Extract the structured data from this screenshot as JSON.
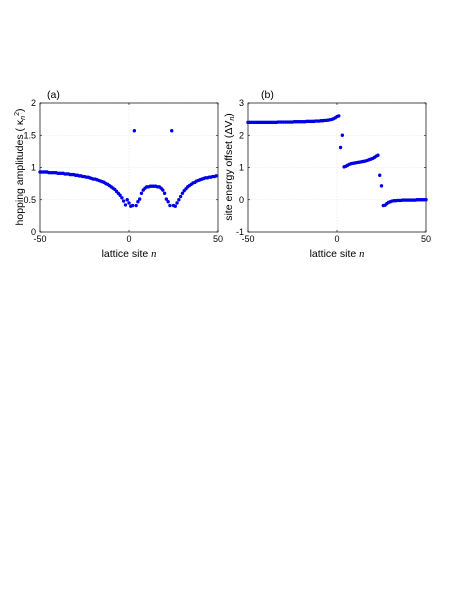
{
  "chart_data": [
    {
      "type": "scatter",
      "panel_label": "(a)",
      "xlabel_text": "lattice site ",
      "xlabel_var": "n",
      "ylabel_text": "hopping amplitudes ( κ",
      "ylabel_sub": "n",
      "ylabel_sup": "2",
      "ylabel_close": ")",
      "xlim": [
        -50,
        50
      ],
      "ylim": [
        0,
        2
      ],
      "xticks": [
        "-50",
        "0",
        "50"
      ],
      "yticks": [
        "0",
        "0.5",
        "1",
        "1.5",
        "2"
      ],
      "grid": true,
      "color": "#0000e6",
      "series": [
        {
          "x": [
            -50,
            -49,
            -48,
            -47,
            -46,
            -45,
            -44,
            -43,
            -42,
            -41,
            -40,
            -39,
            -38,
            -37,
            -36,
            -35,
            -34,
            -33,
            -32,
            -31,
            -30,
            -29,
            -28,
            -27,
            -26,
            -25,
            -24,
            -23,
            -22,
            -21,
            -20,
            -19,
            -18,
            -17,
            -16,
            -15,
            -14,
            -13,
            -12,
            -11,
            -10,
            -9,
            -8,
            -7,
            -6,
            -5,
            -4,
            -3,
            -2,
            -1,
            0,
            1,
            2,
            3,
            4,
            5,
            6,
            7,
            8,
            9,
            10,
            11,
            12,
            13,
            14,
            15,
            16,
            17,
            18,
            19,
            20,
            21,
            22,
            23,
            24,
            25,
            26,
            27,
            28,
            29,
            30,
            31,
            32,
            33,
            34,
            35,
            36,
            37,
            38,
            39,
            40,
            41,
            42,
            43,
            44,
            45,
            46,
            47,
            48,
            49
          ],
          "y": [
            0.93,
            0.93,
            0.93,
            0.93,
            0.93,
            0.92,
            0.92,
            0.92,
            0.92,
            0.92,
            0.91,
            0.91,
            0.91,
            0.91,
            0.9,
            0.9,
            0.9,
            0.89,
            0.89,
            0.89,
            0.88,
            0.88,
            0.87,
            0.87,
            0.86,
            0.86,
            0.85,
            0.85,
            0.84,
            0.83,
            0.82,
            0.82,
            0.81,
            0.8,
            0.79,
            0.78,
            0.77,
            0.75,
            0.74,
            0.72,
            0.7,
            0.68,
            0.66,
            0.63,
            0.6,
            0.57,
            0.53,
            0.48,
            0.42,
            0.5,
            0.45,
            0.4,
            0.41,
            1.57,
            0.41,
            0.47,
            0.51,
            0.6,
            0.65,
            0.68,
            0.7,
            0.7,
            0.71,
            0.71,
            0.71,
            0.71,
            0.7,
            0.7,
            0.68,
            0.65,
            0.6,
            0.51,
            0.47,
            0.41,
            1.57,
            0.41,
            0.4,
            0.45,
            0.5,
            0.55,
            0.6,
            0.64,
            0.67,
            0.7,
            0.72,
            0.74,
            0.76,
            0.77,
            0.79,
            0.8,
            0.81,
            0.82,
            0.83,
            0.84,
            0.84,
            0.85,
            0.85,
            0.86,
            0.86,
            0.87
          ]
        }
      ]
    },
    {
      "type": "scatter",
      "panel_label": "(b)",
      "xlabel_text": "lattice site ",
      "xlabel_var": "n",
      "ylabel_text": "site energy offset (ΔV",
      "ylabel_sub": "n",
      "ylabel_sup": "",
      "ylabel_close": ")",
      "xlim": [
        -50,
        50
      ],
      "ylim": [
        -1,
        3
      ],
      "xticks": [
        "-50",
        "0",
        "50"
      ],
      "yticks": [
        "-1",
        "0",
        "1",
        "2",
        "3"
      ],
      "grid": true,
      "color": "#0000e6",
      "series": [
        {
          "x": [
            -50,
            -49,
            -48,
            -47,
            -46,
            -45,
            -44,
            -43,
            -42,
            -41,
            -40,
            -39,
            -38,
            -37,
            -36,
            -35,
            -34,
            -33,
            -32,
            -31,
            -30,
            -29,
            -28,
            -27,
            -26,
            -25,
            -24,
            -23,
            -22,
            -21,
            -20,
            -19,
            -18,
            -17,
            -16,
            -15,
            -14,
            -13,
            -12,
            -11,
            -10,
            -9,
            -8,
            -7,
            -6,
            -5,
            -4,
            -3,
            -2,
            -1,
            0,
            1,
            2,
            3,
            4,
            5,
            6,
            7,
            8,
            9,
            10,
            11,
            12,
            13,
            14,
            15,
            16,
            17,
            18,
            19,
            20,
            21,
            22,
            23,
            24,
            25,
            26,
            27,
            28,
            29,
            30,
            31,
            32,
            33,
            34,
            35,
            36,
            37,
            38,
            39,
            40,
            41,
            42,
            43,
            44,
            45,
            46,
            47,
            48,
            49,
            50
          ],
          "y": [
            2.4,
            2.4,
            2.4,
            2.4,
            2.4,
            2.4,
            2.4,
            2.4,
            2.4,
            2.4,
            2.4,
            2.4,
            2.4,
            2.4,
            2.4,
            2.4,
            2.4,
            2.41,
            2.41,
            2.41,
            2.41,
            2.41,
            2.41,
            2.41,
            2.41,
            2.41,
            2.42,
            2.42,
            2.42,
            2.42,
            2.42,
            2.42,
            2.42,
            2.43,
            2.43,
            2.43,
            2.43,
            2.43,
            2.44,
            2.44,
            2.44,
            2.45,
            2.45,
            2.46,
            2.46,
            2.47,
            2.48,
            2.49,
            2.51,
            2.54,
            2.58,
            2.6,
            1.62,
            2.0,
            1.02,
            1.04,
            1.07,
            1.1,
            1.12,
            1.13,
            1.14,
            1.15,
            1.16,
            1.17,
            1.18,
            1.19,
            1.2,
            1.22,
            1.24,
            1.26,
            1.28,
            1.31,
            1.35,
            1.38,
            0.76,
            0.43,
            -0.18,
            -0.17,
            -0.12,
            -0.08,
            -0.06,
            -0.04,
            -0.03,
            -0.03,
            -0.02,
            -0.02,
            -0.02,
            -0.01,
            -0.01,
            -0.01,
            -0.01,
            -0.01,
            -0.01,
            -0.01,
            -0.01,
            0.0,
            0.0,
            0.0,
            0.0,
            0.0,
            0.0
          ]
        }
      ]
    }
  ]
}
